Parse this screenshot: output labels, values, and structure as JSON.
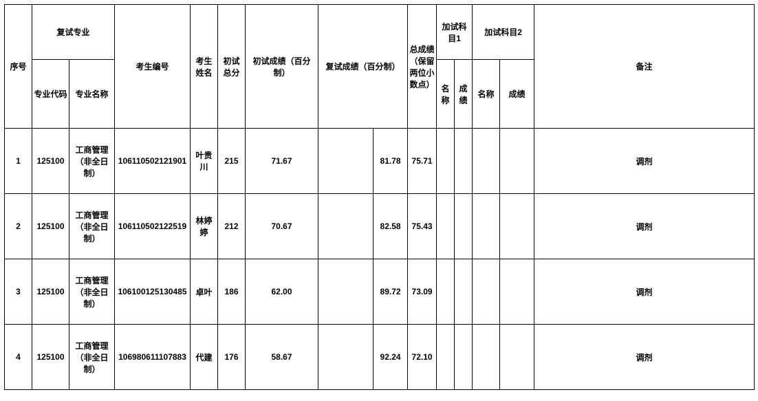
{
  "table": {
    "columns": {
      "seq": "序号",
      "major_group": "复试专业",
      "major_code": "专业代码",
      "major_name": "专业名称",
      "exam_id": "考生编号",
      "name": "考生姓名",
      "first_total": "初试总分",
      "first_pct": "初试成绩（百分制）",
      "retest_pct": "复试成绩（百分制）",
      "total_score": "总成绩（保留两位小数点）",
      "extra1_group": "加试科目1",
      "extra2_group": "加试科目2",
      "extra_name": "名称",
      "extra_score": "成绩",
      "remark": "备注"
    },
    "col_widths": {
      "seq": 40,
      "major_code": 54,
      "major_name": 66,
      "exam_id": 110,
      "name": 40,
      "first_total": 40,
      "first_pct_a": 48,
      "first_pct_b": 58,
      "retest_pct_a": 80,
      "retest_pct_b": 50,
      "total_score": 42,
      "e1_name": 26,
      "e1_score": 26,
      "e2_name": 40,
      "e2_score": 50,
      "remark": 320
    },
    "rows": [
      {
        "seq": "1",
        "major_code": "125100",
        "major_name": "工商管理（非全日制）",
        "exam_id": "106110502121901",
        "name": "叶贵川",
        "first_total": "215",
        "first_pct": "71.67",
        "retest_pct": "81.78",
        "total_score": "75.71",
        "e1_name": "",
        "e1_score": "",
        "e2_name": "",
        "e2_score": "",
        "remark": "调剂"
      },
      {
        "seq": "2",
        "major_code": "125100",
        "major_name": "工商管理（非全日制）",
        "exam_id": "106110502122519",
        "name": "林婷婷",
        "first_total": "212",
        "first_pct": "70.67",
        "retest_pct": "82.58",
        "total_score": "75.43",
        "e1_name": "",
        "e1_score": "",
        "e2_name": "",
        "e2_score": "",
        "remark": "调剂"
      },
      {
        "seq": "3",
        "major_code": "125100",
        "major_name": "工商管理（非全日制）",
        "exam_id": "106100125130485",
        "name": "卓叶",
        "first_total": "186",
        "first_pct": "62.00",
        "retest_pct": "89.72",
        "total_score": "73.09",
        "e1_name": "",
        "e1_score": "",
        "e2_name": "",
        "e2_score": "",
        "remark": "调剂"
      },
      {
        "seq": "4",
        "major_code": "125100",
        "major_name": "工商管理（非全日制）",
        "exam_id": "106980611107883",
        "name": "代建",
        "first_total": "176",
        "first_pct": "58.67",
        "retest_pct": "92.24",
        "total_score": "72.10",
        "e1_name": "",
        "e1_score": "",
        "e2_name": "",
        "e2_score": "",
        "remark": "调剂"
      }
    ]
  }
}
